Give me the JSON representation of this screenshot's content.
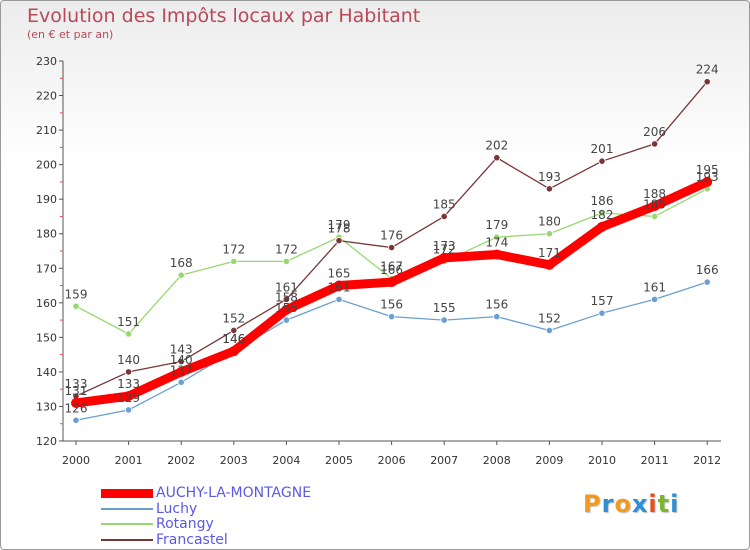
{
  "header": {
    "title": "Evolution des Impôts locaux par Habitant",
    "subtitle": "(en € et par an)"
  },
  "logo": {
    "text": [
      "P",
      "r",
      "o",
      "x",
      "i",
      "t",
      "i"
    ],
    "colors": [
      "#f39a1e",
      "#2e8fd4",
      "#f39a1e",
      "#2e8fd4",
      "#e84e1b",
      "#7ab929",
      "#2e8fd4"
    ]
  },
  "chart_data": {
    "type": "line",
    "title": "Evolution des Impôts locaux par Habitant",
    "subtitle": "(en € et par an)",
    "xlabel": "",
    "ylabel": "",
    "ylim": [
      120,
      230
    ],
    "yticks": [
      120,
      130,
      140,
      150,
      160,
      170,
      180,
      190,
      200,
      210,
      220,
      230
    ],
    "categories": [
      "2000",
      "2001",
      "2002",
      "2003",
      "2004",
      "2005",
      "2006",
      "2007",
      "2008",
      "2009",
      "2010",
      "2011",
      "2012"
    ],
    "series": [
      {
        "name": "AUCHY-LA-MONTAGNE",
        "color": "#ff0000",
        "values": [
          131,
          133,
          140,
          146,
          158,
          165,
          166,
          173,
          174,
          171,
          182,
          188,
          195
        ]
      },
      {
        "name": "Luchy",
        "color": "#6a9fd0",
        "values": [
          126,
          129,
          137,
          146,
          155,
          161,
          156,
          155,
          156,
          152,
          157,
          161,
          166
        ]
      },
      {
        "name": "Rotangy",
        "color": "#98d870",
        "values": [
          159,
          151,
          168,
          172,
          172,
          179,
          167,
          172,
          179,
          180,
          186,
          185,
          193
        ]
      },
      {
        "name": "Francastel",
        "color": "#7a3636",
        "values": [
          133,
          140,
          143,
          152,
          161,
          178,
          176,
          185,
          202,
          193,
          201,
          206,
          224
        ]
      }
    ],
    "legend": "bottom-left"
  }
}
